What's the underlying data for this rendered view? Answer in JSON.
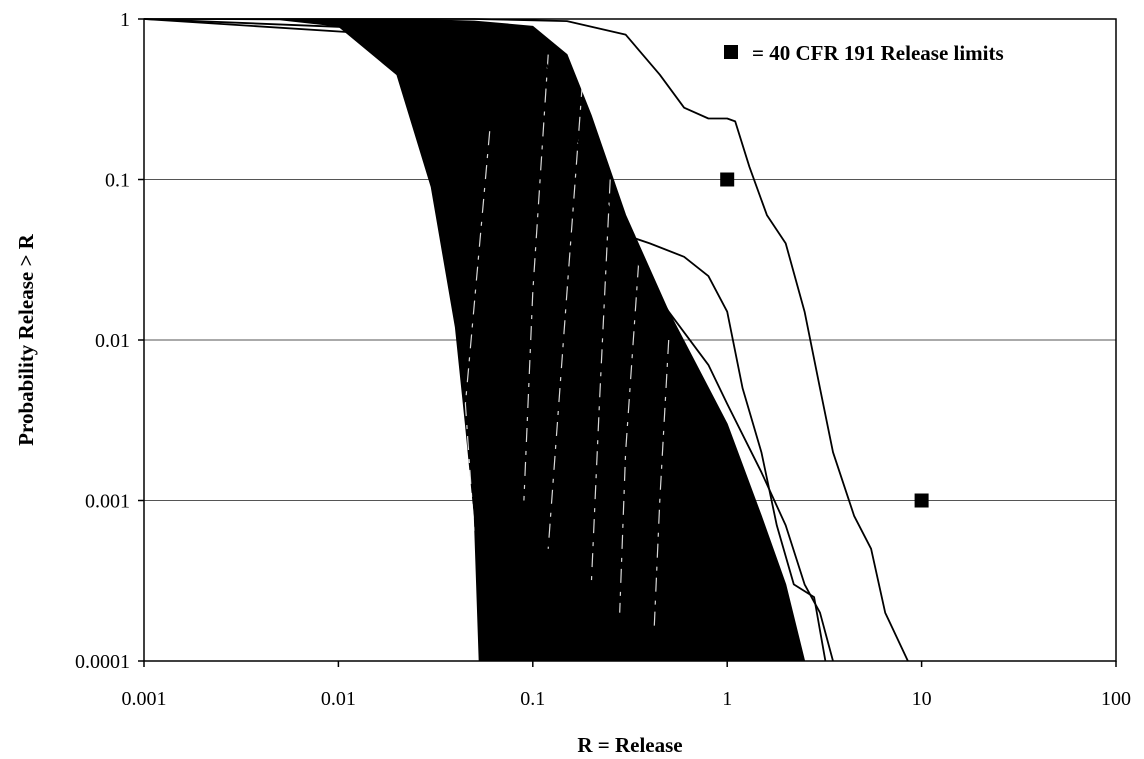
{
  "chart_data": {
    "type": "line",
    "title": "",
    "xlabel": "R = Release",
    "ylabel": "Probability Release > R",
    "x_scale": "log",
    "y_scale": "log",
    "xlim": [
      0.001,
      100
    ],
    "ylim": [
      0.0001,
      1
    ],
    "x_ticks": [
      0.001,
      0.01,
      0.1,
      1,
      10,
      100
    ],
    "x_tick_labels": [
      "0.001",
      "0.01",
      "0.1",
      "1",
      "10",
      "100"
    ],
    "y_ticks": [
      0.0001,
      0.001,
      0.01,
      0.1,
      1
    ],
    "y_tick_labels": [
      "0.0001",
      "0.001",
      "0.01",
      "0.1",
      "1"
    ],
    "grid": "horizontal",
    "legend": {
      "position": "top-right",
      "marker": "square",
      "label": "= 40 CFR 191 Release limits"
    },
    "reference_points": [
      {
        "x": 1,
        "y": 0.1
      },
      {
        "x": 10,
        "y": 0.001
      }
    ],
    "envelope": {
      "lower_bound": [
        [
          0.001,
          1
        ],
        [
          0.005,
          0.99
        ],
        [
          0.01,
          0.9
        ],
        [
          0.02,
          0.45
        ],
        [
          0.03,
          0.09
        ],
        [
          0.04,
          0.012
        ],
        [
          0.045,
          0.003
        ],
        [
          0.05,
          0.0008
        ],
        [
          0.053,
          0.0001
        ]
      ],
      "upper_bound": [
        [
          0.001,
          1
        ],
        [
          0.02,
          1
        ],
        [
          0.05,
          0.97
        ],
        [
          0.1,
          0.9
        ],
        [
          0.15,
          0.6
        ],
        [
          0.2,
          0.25
        ],
        [
          0.3,
          0.06
        ],
        [
          0.5,
          0.015
        ],
        [
          1,
          0.003
        ],
        [
          1.5,
          0.0008
        ],
        [
          2,
          0.0003
        ],
        [
          2.5,
          0.0001
        ]
      ]
    },
    "outlier_series": [
      {
        "points": [
          [
            0.001,
            1
          ],
          [
            0.05,
            1
          ],
          [
            0.15,
            0.97
          ],
          [
            0.3,
            0.8
          ],
          [
            0.45,
            0.45
          ],
          [
            0.6,
            0.28
          ],
          [
            0.8,
            0.24
          ],
          [
            1,
            0.24
          ],
          [
            1.1,
            0.23
          ],
          [
            1.3,
            0.12
          ],
          [
            1.6,
            0.06
          ],
          [
            2,
            0.04
          ],
          [
            2.5,
            0.015
          ],
          [
            3,
            0.005
          ],
          [
            3.5,
            0.002
          ],
          [
            4.5,
            0.0008
          ],
          [
            5.5,
            0.0005
          ],
          [
            6.5,
            0.0002
          ],
          [
            8.5,
            0.0001
          ]
        ]
      },
      {
        "points": [
          [
            0.001,
            1
          ],
          [
            0.1,
            0.8
          ],
          [
            0.3,
            0.045
          ],
          [
            0.4,
            0.04
          ],
          [
            0.6,
            0.033
          ],
          [
            0.8,
            0.025
          ],
          [
            1,
            0.015
          ],
          [
            1.2,
            0.005
          ],
          [
            1.5,
            0.002
          ],
          [
            1.8,
            0.0007
          ],
          [
            2.2,
            0.0003
          ],
          [
            2.8,
            0.00025
          ],
          [
            3.2,
            0.0001
          ]
        ]
      },
      {
        "points": [
          [
            0.001,
            1
          ],
          [
            0.1,
            0.7
          ],
          [
            0.3,
            0.04
          ],
          [
            0.5,
            0.015
          ],
          [
            0.8,
            0.007
          ],
          [
            1,
            0.004
          ],
          [
            1.5,
            0.0015
          ],
          [
            2,
            0.0007
          ],
          [
            2.5,
            0.0003
          ],
          [
            3,
            0.0002
          ],
          [
            3.5,
            0.0001
          ]
        ]
      }
    ]
  }
}
